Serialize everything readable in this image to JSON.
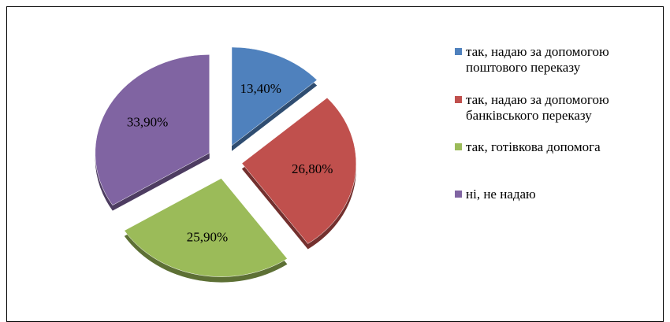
{
  "chart_data": {
    "type": "pie",
    "categories": [
      "так, надаю за допомогою поштового переказу",
      "так, надаю за допомогою банківського переказу",
      "так, готівкова допомога",
      "ні, не надаю"
    ],
    "values": [
      13.4,
      26.8,
      25.9,
      33.9
    ],
    "value_labels": [
      "13,40%",
      "26,80%",
      "25,90%",
      "33,90%"
    ],
    "colors": [
      "#4f81bd",
      "#c0504d",
      "#9bbb59",
      "#8064a2"
    ]
  }
}
